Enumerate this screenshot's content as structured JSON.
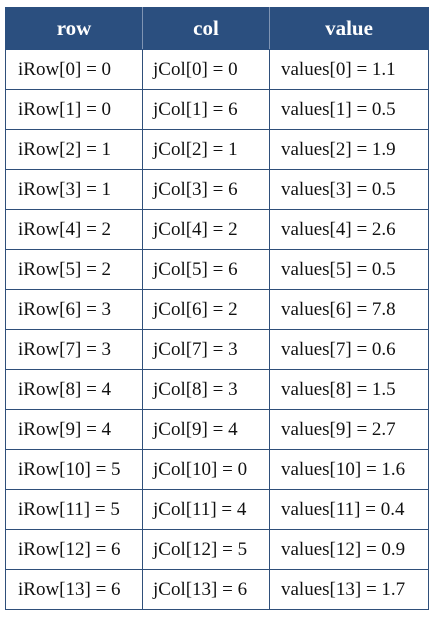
{
  "headers": {
    "row": "row",
    "col": "col",
    "value": "value"
  },
  "rows": [
    [
      "iRow[0] = 0",
      "jCol[0] = 0",
      "values[0] = 1.1"
    ],
    [
      "iRow[1] = 0",
      "jCol[1] = 6",
      "values[1] = 0.5"
    ],
    [
      "iRow[2] = 1",
      "jCol[2] = 1",
      "values[2] = 1.9"
    ],
    [
      "iRow[3] = 1",
      "jCol[3] = 6",
      "values[3] = 0.5"
    ],
    [
      "iRow[4] = 2",
      "jCol[4] = 2",
      "values[4] = 2.6"
    ],
    [
      "iRow[5] = 2",
      "jCol[5] = 6",
      "values[5] = 0.5"
    ],
    [
      "iRow[6] = 3",
      "jCol[6] = 2",
      "values[6] = 7.8"
    ],
    [
      "iRow[7] = 3",
      "jCol[7] = 3",
      "values[7] = 0.6"
    ],
    [
      "iRow[8] = 4",
      "jCol[8] = 3",
      "values[8] = 1.5"
    ],
    [
      "iRow[9] = 4",
      "jCol[9] = 4",
      "values[9] = 2.7"
    ],
    [
      "iRow[10] = 5",
      "jCol[10] = 0",
      "values[10] = 1.6"
    ],
    [
      "iRow[11] = 5",
      "jCol[11] = 4",
      "values[11] = 0.4"
    ],
    [
      "iRow[12] = 6",
      "jCol[12] = 5",
      "values[12] = 0.9"
    ],
    [
      "iRow[13] = 6",
      "jCol[13] = 6",
      "values[13] = 1.7"
    ]
  ],
  "colors": {
    "header_background": "#2b4f7f",
    "header_text": "#ffffff",
    "border": "#2f4f7a"
  }
}
